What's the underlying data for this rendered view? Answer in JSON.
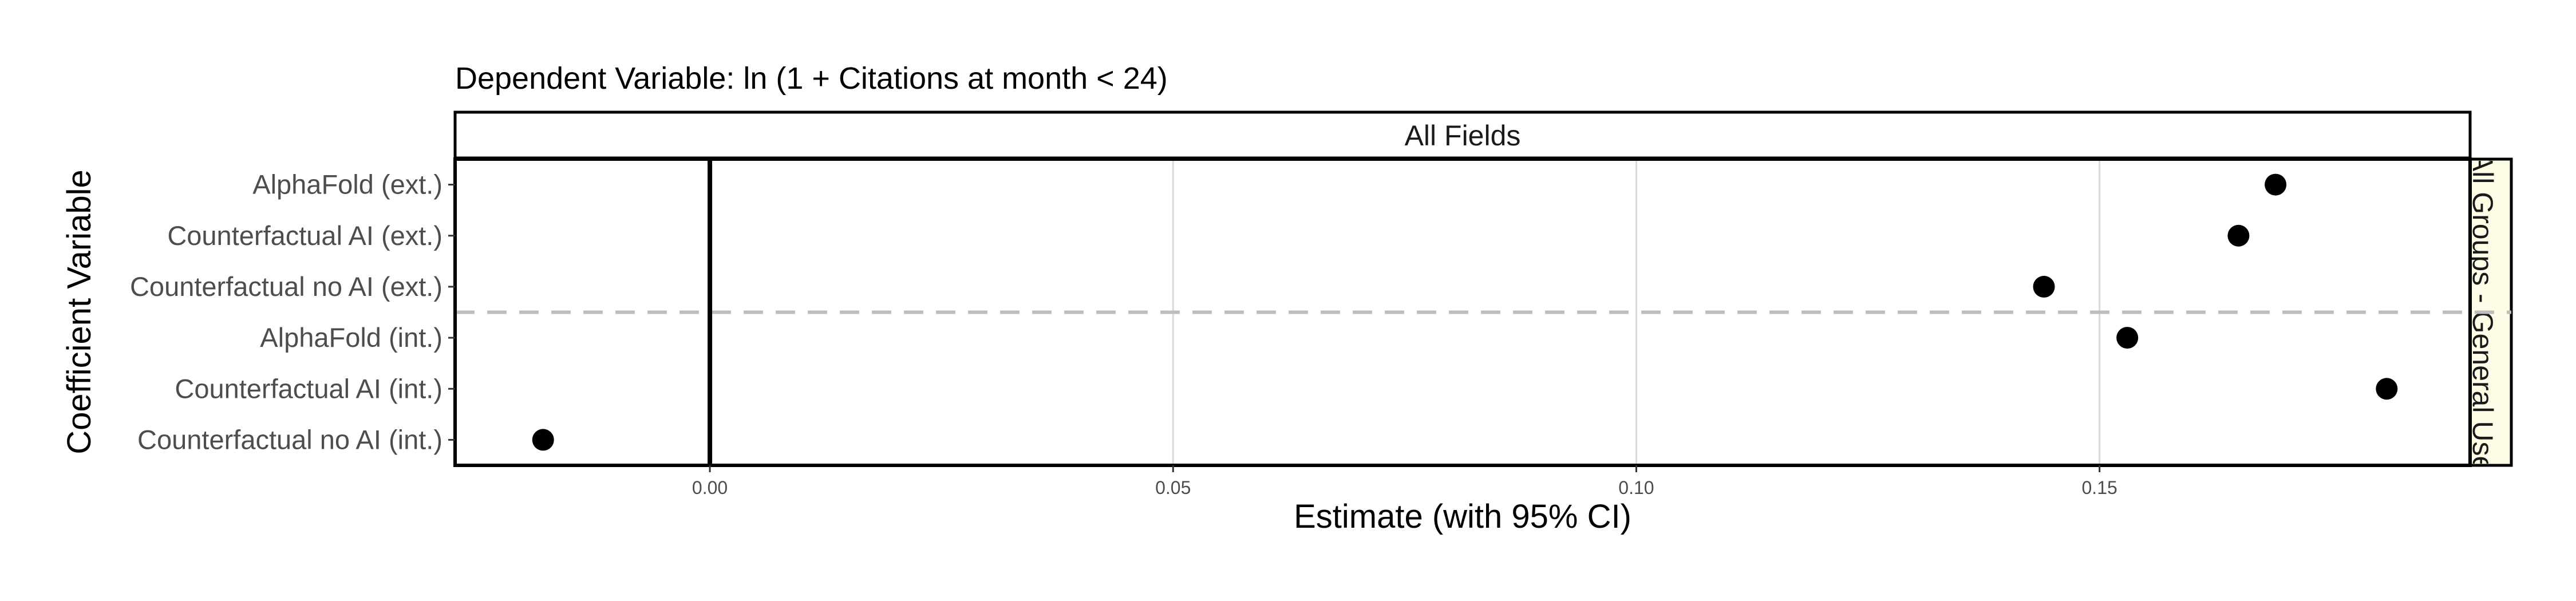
{
  "chart_data": {
    "type": "scatter",
    "title": "Dependent Variable: ln (1 + Citations at month < 24)",
    "facet_top": "All Fields",
    "facet_right": "All Groups - General Use",
    "xlabel": "Estimate (with 95% CI)",
    "ylabel": "Coefficient Variable",
    "xlim": [
      -0.0275,
      0.19
    ],
    "x_ticks": [
      0.0,
      0.05,
      0.1,
      0.15
    ],
    "x_tick_labels": [
      "0.00",
      "0.05",
      "0.10",
      "0.15"
    ],
    "categories": [
      "AlphaFold (ext.)",
      "Counterfactual AI (ext.)",
      "Counterfactual no AI (ext.)",
      "AlphaFold (int.)",
      "Counterfactual AI (int.)",
      "Counterfactual no AI (int.)"
    ],
    "values": [
      0.169,
      0.165,
      0.144,
      0.153,
      0.181,
      -0.018
    ],
    "reference_line_x": 0,
    "group_separator_after": 3,
    "grid": true
  }
}
